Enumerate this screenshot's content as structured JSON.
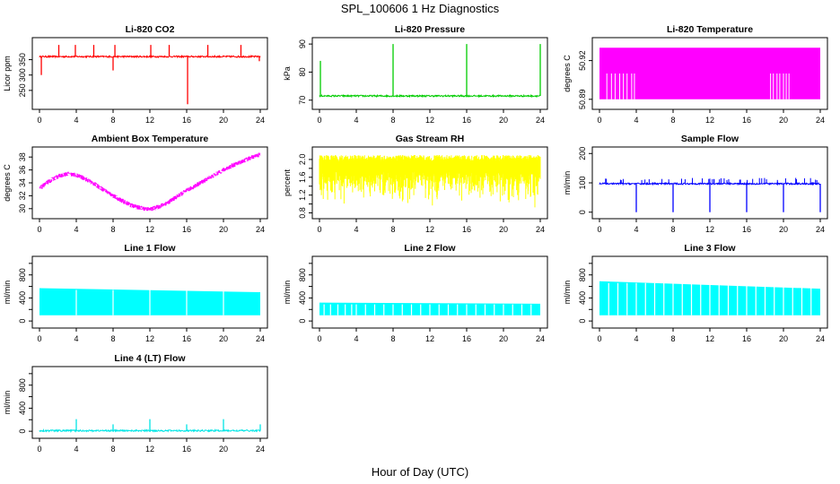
{
  "figure": {
    "title": "SPL_100606  1 Hz Diagnostics",
    "xlabel": "Hour of Day (UTC)"
  },
  "chart_data": [
    {
      "type": "line",
      "title": "Li-820 CO2",
      "ylabel": "Licor ppm",
      "xlim": [
        0,
        24
      ],
      "xticks": [
        0,
        4,
        8,
        12,
        16,
        20,
        24
      ],
      "ylim": [
        200,
        410
      ],
      "yticks": [
        250,
        300,
        350
      ],
      "color": "#ff0000",
      "baseline": 360,
      "spikes": [
        {
          "x": 0.2,
          "y": 300
        },
        {
          "x": 2.1,
          "y": 398
        },
        {
          "x": 3.9,
          "y": 398
        },
        {
          "x": 5.9,
          "y": 398
        },
        {
          "x": 8.0,
          "y": 315
        },
        {
          "x": 8.2,
          "y": 398
        },
        {
          "x": 12.1,
          "y": 398
        },
        {
          "x": 14.1,
          "y": 398
        },
        {
          "x": 16.1,
          "y": 205
        },
        {
          "x": 18.3,
          "y": 398
        },
        {
          "x": 21.9,
          "y": 398
        },
        {
          "x": 23.9,
          "y": 345
        }
      ]
    },
    {
      "type": "line",
      "title": "Li-820 Pressure",
      "ylabel": "kPa",
      "xlim": [
        0,
        24
      ],
      "xticks": [
        0,
        4,
        8,
        12,
        16,
        20,
        24
      ],
      "ylim": [
        68,
        91
      ],
      "yticks": [
        70,
        80,
        90
      ],
      "color": "#00cc00",
      "baseline": 71.5,
      "spikes": [
        {
          "x": 0.1,
          "y": 84
        },
        {
          "x": 8.0,
          "y": 90
        },
        {
          "x": 16.0,
          "y": 90
        },
        {
          "x": 24.0,
          "y": 90
        }
      ]
    },
    {
      "type": "band",
      "title": "Li-820 Temperature",
      "ylabel": "degrees C",
      "xlim": [
        0,
        24
      ],
      "xticks": [
        0,
        4,
        8,
        12,
        16,
        20,
        24
      ],
      "ylim": [
        50.885,
        50.935
      ],
      "yticks": [
        50.89,
        50.92
      ],
      "color": "#ff00ff",
      "band": [
        50.89,
        50.93
      ],
      "notches": [
        0.8,
        1.3,
        1.7,
        2.2,
        2.6,
        3.0,
        3.5,
        3.8,
        18.6,
        18.9,
        19.3,
        19.6,
        20.0,
        20.3,
        20.6
      ]
    },
    {
      "type": "line",
      "title": "Ambient Box Temperature",
      "ylabel": "degrees C",
      "xlim": [
        0,
        24
      ],
      "xticks": [
        0,
        4,
        8,
        12,
        16,
        20,
        24
      ],
      "ylim": [
        29,
        39
      ],
      "yticks": [
        30,
        32,
        34,
        36,
        38
      ],
      "color": "#ff00ff",
      "x": [
        0,
        1,
        2,
        3,
        4,
        5,
        6,
        7,
        8,
        9,
        10,
        11,
        12,
        13,
        14,
        15,
        16,
        17,
        18,
        19,
        20,
        21,
        22,
        23,
        24
      ],
      "y": [
        33.1,
        34.2,
        35.0,
        35.4,
        35.2,
        34.6,
        33.8,
        32.9,
        32.0,
        31.2,
        30.5,
        30.1,
        29.9,
        30.3,
        31.0,
        31.9,
        32.8,
        33.6,
        34.4,
        35.2,
        36.0,
        36.7,
        37.3,
        37.9,
        38.4
      ]
    },
    {
      "type": "band",
      "title": "Gas Stream RH",
      "ylabel": "percent",
      "xlim": [
        0,
        24
      ],
      "xticks": [
        0,
        4,
        8,
        12,
        16,
        20,
        24
      ],
      "ylim": [
        0.75,
        2.2
      ],
      "yticks": [
        0.8,
        1.0,
        1.2,
        1.4,
        1.6,
        1.8,
        2.0
      ],
      "yticklabels": [
        "0.8",
        "",
        "1.2",
        "",
        "1.6",
        "",
        "2.0"
      ],
      "color": "#ffff00",
      "band": [
        0.85,
        2.1
      ]
    },
    {
      "type": "line",
      "title": "Sample Flow",
      "ylabel": "ml/min",
      "xlim": [
        0,
        24
      ],
      "xticks": [
        0,
        4,
        8,
        12,
        16,
        20,
        24
      ],
      "ylim": [
        -10,
        210
      ],
      "yticks": [
        0,
        100,
        200
      ],
      "color": "#0000ff",
      "baseline": 97,
      "dips": [
        {
          "x": 4.0,
          "y": 0
        },
        {
          "x": 8.0,
          "y": 0
        },
        {
          "x": 12.0,
          "y": 0
        },
        {
          "x": 16.0,
          "y": 0
        },
        {
          "x": 20.0,
          "y": 0
        },
        {
          "x": 24.0,
          "y": 0
        }
      ]
    },
    {
      "type": "band",
      "title": "Line 1 Flow",
      "ylabel": "ml/min",
      "xlim": [
        0,
        24
      ],
      "xticks": [
        0,
        4,
        8,
        12,
        16,
        20,
        24
      ],
      "ylim": [
        -60,
        1060
      ],
      "yticks": [
        0,
        200,
        400,
        600,
        800,
        1000
      ],
      "yticklabels": [
        "0",
        "",
        "400",
        "",
        "800",
        ""
      ],
      "color": "#00ffff",
      "band": [
        100,
        570
      ],
      "band_top_end": 500,
      "gaps": [
        4.0,
        8.0,
        12.0,
        16.0,
        20.0
      ]
    },
    {
      "type": "band",
      "title": "Line 2 Flow",
      "ylabel": "ml/min",
      "xlim": [
        0,
        24
      ],
      "xticks": [
        0,
        4,
        8,
        12,
        16,
        20,
        24
      ],
      "ylim": [
        -60,
        1060
      ],
      "yticks": [
        0,
        200,
        400,
        600,
        800,
        1000
      ],
      "yticklabels": [
        "0",
        "",
        "400",
        "",
        "800",
        ""
      ],
      "color": "#00ffff",
      "band": [
        100,
        320
      ],
      "band_top_end": 300,
      "gaps": [
        0.5,
        1.2,
        2.0,
        2.8,
        3.5,
        4.0,
        5.0,
        6.0,
        7.0,
        8.0,
        9.0,
        10.0,
        11.0,
        12.0,
        13.0,
        14.0,
        15.0,
        16.0,
        17.0,
        18.0,
        19.0,
        20.0,
        21.0,
        22.0,
        23.0
      ]
    },
    {
      "type": "band",
      "title": "Line 3 Flow",
      "ylabel": "ml/min",
      "xlim": [
        0,
        24
      ],
      "xticks": [
        0,
        4,
        8,
        12,
        16,
        20,
        24
      ],
      "ylim": [
        -60,
        1060
      ],
      "yticks": [
        0,
        200,
        400,
        600,
        800,
        1000
      ],
      "yticklabels": [
        "0",
        "",
        "400",
        "",
        "800",
        ""
      ],
      "color": "#00ffff",
      "band": [
        100,
        690
      ],
      "band_top_end": 560,
      "gaps": [
        1.0,
        2.0,
        3.0,
        4.0,
        5.0,
        6.0,
        7.0,
        8.0,
        9.0,
        10.0,
        11.0,
        12.0,
        13.0,
        14.0,
        15.0,
        16.0,
        17.0,
        18.0,
        19.0,
        20.0,
        21.0,
        22.0,
        23.0
      ]
    },
    {
      "type": "line",
      "title": "Line 4 (LT) Flow",
      "ylabel": "ml/min",
      "xlim": [
        0,
        24
      ],
      "xticks": [
        0,
        4,
        8,
        12,
        16,
        20,
        24
      ],
      "ylim": [
        -60,
        1060
      ],
      "yticks": [
        0,
        200,
        400,
        600,
        800,
        1000
      ],
      "yticklabels": [
        "0",
        "",
        "400",
        "",
        "800",
        ""
      ],
      "color": "#00e5e5",
      "baseline": 10,
      "spikes": [
        {
          "x": 4.0,
          "y": 210
        },
        {
          "x": 8.0,
          "y": 120
        },
        {
          "x": 12.0,
          "y": 210
        },
        {
          "x": 16.0,
          "y": 120
        },
        {
          "x": 20.0,
          "y": 210
        },
        {
          "x": 24.0,
          "y": 120
        }
      ]
    }
  ]
}
